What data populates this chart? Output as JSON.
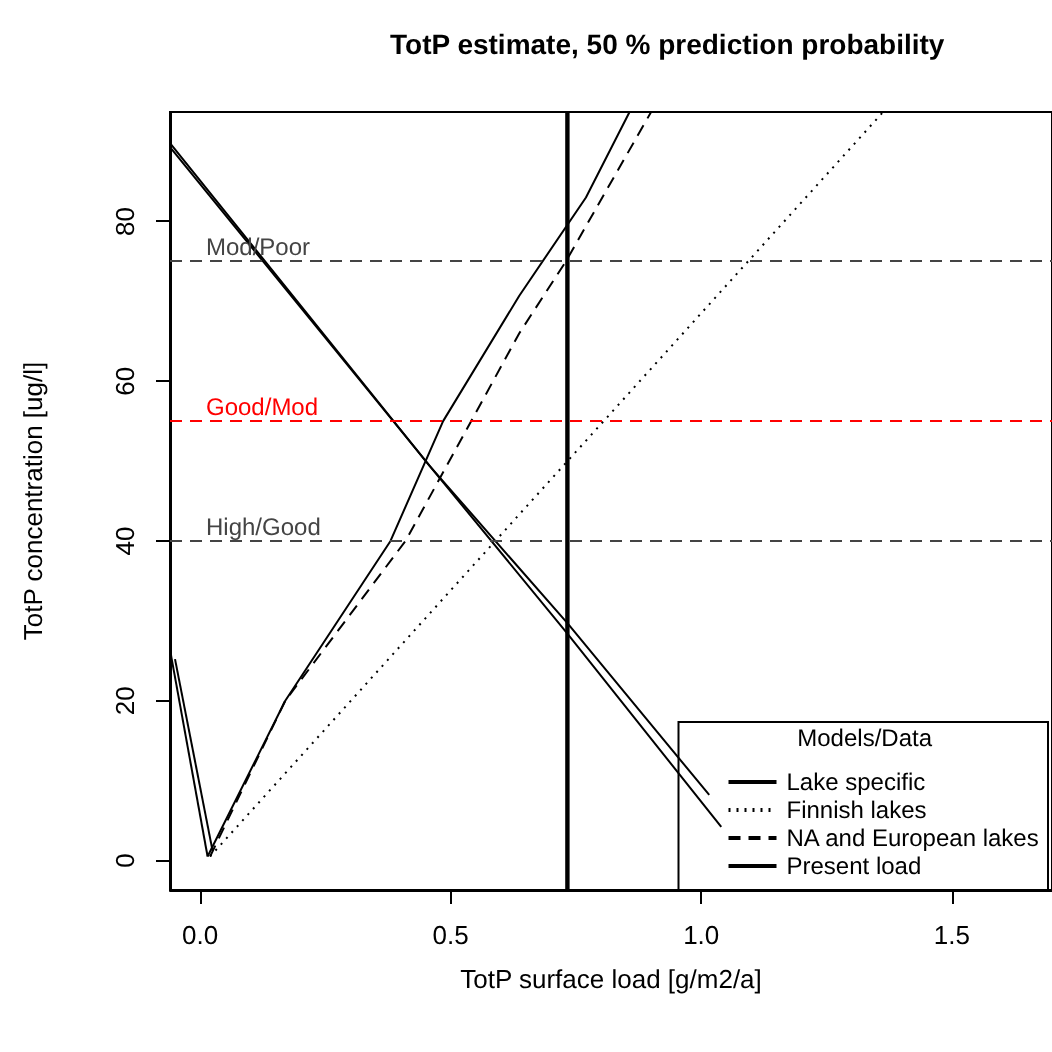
{
  "chart_data": {
    "type": "line",
    "title": "TotP estimate, 50 % prediction probability",
    "xlabel": "TotP surface load [g/m2/a]",
    "ylabel": "TotP concentration [ug/l]",
    "legend_title": "Models/Data",
    "xlim": [
      -0.06,
      1.7
    ],
    "xticks": [
      {
        "value": 0,
        "label": "0.0"
      },
      0.5,
      {
        "value": 1,
        "label": "1.0"
      },
      1.5
    ],
    "ylim": [
      -3.7,
      93.7
    ],
    "yticks": [
      0,
      20,
      40,
      60,
      80
    ],
    "series": [
      {
        "name": "Lake specific",
        "color": "#000000",
        "line_style": "solid",
        "x": [
          0.015,
          0.17,
          0.38,
          0.485,
          0.637,
          0.77,
          0.857
        ],
        "values": [
          0.5,
          20,
          40,
          55,
          70.7,
          83,
          93.7
        ]
      },
      {
        "name": "Finnish lakes",
        "color": "#000000",
        "line_style": "dotted",
        "x": [
          0.02,
          1.363
        ],
        "values": [
          0.5,
          93.7
        ]
      },
      {
        "name": "NA and European lakes",
        "color": "#000000",
        "line_style": "dashed",
        "x": [
          0.02,
          0.17,
          0.41,
          0.637,
          0.73,
          0.9
        ],
        "values": [
          0.5,
          20,
          40,
          66,
          75,
          93.7
        ]
      },
      {
        "name": "Present load",
        "color": "#000000",
        "line_style": "solid",
        "x": [
          0.733,
          0.733
        ],
        "values": [
          -3.7,
          93.7
        ]
      },
      {
        "color": "#000000",
        "line_style": "solid",
        "x": [
          -0.06,
          0.015
        ],
        "values": [
          26.4,
          0.5
        ]
      },
      {
        "color": "#000000",
        "line_style": "solid",
        "x": [
          -0.05,
          0.025
        ],
        "values": [
          25.2,
          1.2
        ]
      },
      {
        "color": "#000000",
        "line_style": "solid",
        "x": [
          -0.06,
          0.458,
          0.733,
          1.016
        ],
        "values": [
          89.8,
          49.4,
          29.7,
          8.2
        ]
      },
      {
        "color": "#000000",
        "line_style": "solid",
        "x": [
          -0.06,
          0.47,
          0.733,
          1.04
        ],
        "values": [
          89.3,
          48.5,
          28.4,
          4.2
        ]
      }
    ],
    "ref_lines": [
      {
        "axis": "y",
        "value": 75,
        "label": "Mod/Poor",
        "color": "#444444",
        "line_style": "dashed"
      },
      {
        "axis": "y",
        "value": 55,
        "label": "Good/Mod",
        "color": "#ff0000",
        "line_style": "dashed"
      },
      {
        "axis": "y",
        "value": 40,
        "label": "High/Good",
        "color": "#444444",
        "line_style": "dashed"
      }
    ],
    "legend": "bottom right",
    "marker": "none",
    "grid": false
  }
}
